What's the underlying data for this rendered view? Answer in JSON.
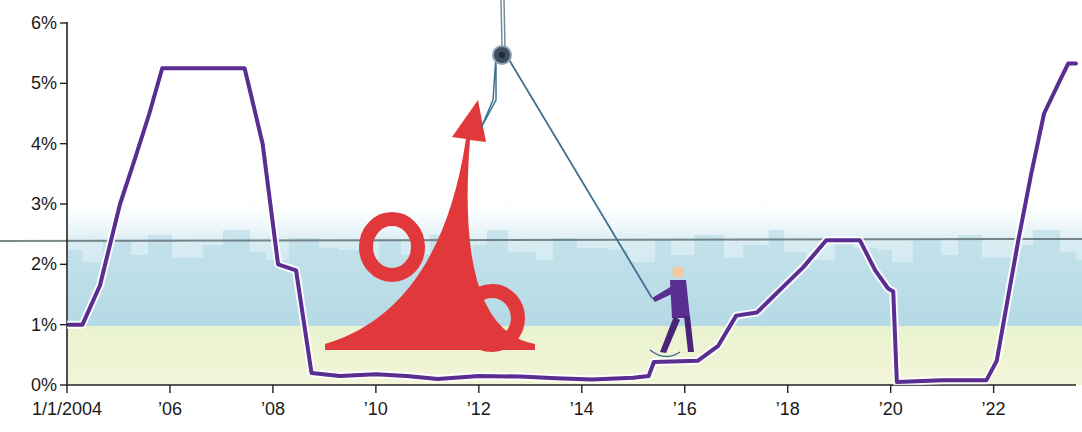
{
  "chart_data": {
    "type": "line",
    "x": [
      2004.0,
      2004.3,
      2004.64,
      2005.03,
      2005.3,
      2005.6,
      2005.85,
      2007.45,
      2007.8,
      2008.1,
      2008.45,
      2008.75,
      2009.3,
      2010.0,
      2010.6,
      2011.2,
      2012.0,
      2012.8,
      2013.5,
      2014.2,
      2015.0,
      2015.3,
      2015.4,
      2016.25,
      2016.65,
      2017.0,
      2017.4,
      2017.7,
      2018.0,
      2018.3,
      2018.75,
      2019.4,
      2019.7,
      2019.95,
      2020.05,
      2020.12,
      2021.0,
      2021.86,
      2022.06,
      2022.29,
      2022.48,
      2022.73,
      2022.98,
      2023.26,
      2023.45,
      2023.6
    ],
    "values": [
      1.0,
      1.0,
      1.65,
      3.0,
      3.7,
      4.5,
      5.25,
      5.25,
      4.0,
      2.0,
      1.9,
      0.2,
      0.15,
      0.18,
      0.15,
      0.1,
      0.15,
      0.14,
      0.11,
      0.09,
      0.12,
      0.15,
      0.38,
      0.4,
      0.65,
      1.15,
      1.2,
      1.45,
      1.7,
      1.95,
      2.4,
      2.4,
      1.9,
      1.6,
      1.55,
      0.05,
      0.08,
      0.08,
      0.4,
      1.5,
      2.4,
      3.5,
      4.5,
      5.0,
      5.33,
      5.33
    ],
    "color": "#5a2d91",
    "xlim": [
      2004,
      2023.6
    ],
    "ylim": [
      0,
      6
    ],
    "xticks": [
      {
        "value": 2004,
        "label": "1/1/2004"
      },
      {
        "value": 2006,
        "label": "’06"
      },
      {
        "value": 2008,
        "label": "’08"
      },
      {
        "value": 2010,
        "label": "’10"
      },
      {
        "value": 2012,
        "label": "’12"
      },
      {
        "value": 2014,
        "label": "’14"
      },
      {
        "value": 2016,
        "label": "’16"
      },
      {
        "value": 2018,
        "label": "’18"
      },
      {
        "value": 2020,
        "label": "’20"
      },
      {
        "value": 2022,
        "label": "’22"
      }
    ],
    "yticks": [
      {
        "value": 0,
        "label": "0%"
      },
      {
        "value": 1,
        "label": "1%"
      },
      {
        "value": 2,
        "label": "2%"
      },
      {
        "value": 3,
        "label": "3%"
      },
      {
        "value": 4,
        "label": "4%"
      },
      {
        "value": 5,
        "label": "5%"
      },
      {
        "value": 6,
        "label": "6%"
      }
    ]
  }
}
